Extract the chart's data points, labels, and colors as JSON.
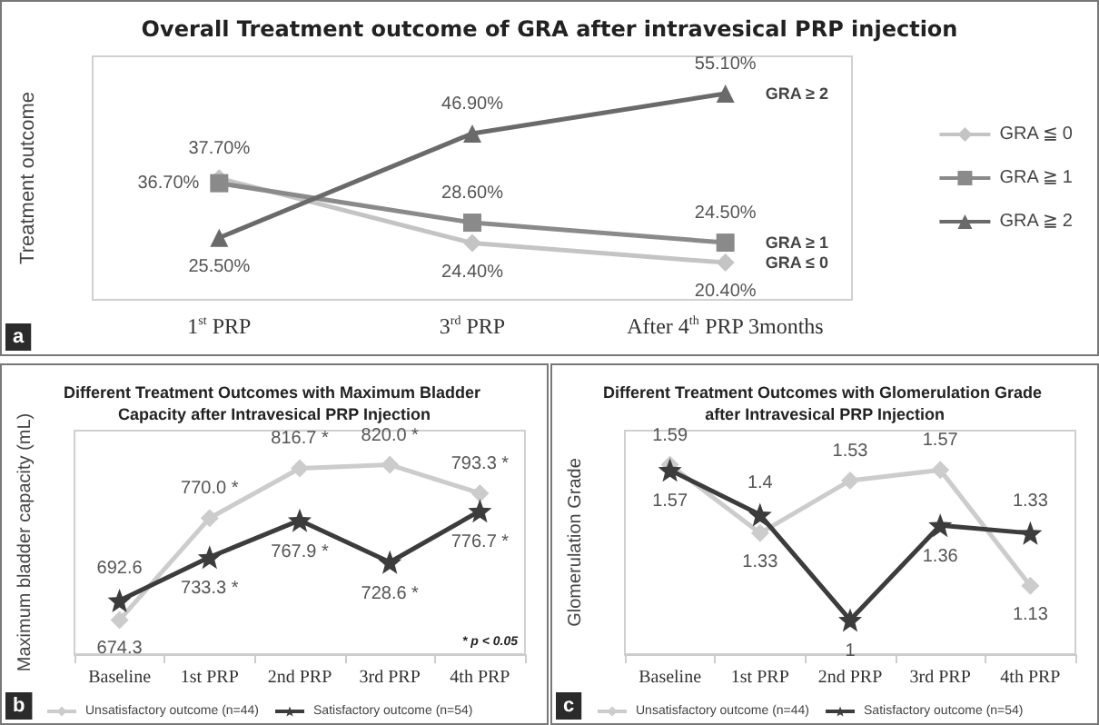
{
  "chart_data": [
    {
      "type": "line",
      "title": "Overall Treatment outcome of GRA after intravesical PRP injection",
      "ylabel": "Treatment outcome",
      "categories": [
        "1$^{st}$ PRP",
        "3$^{rd}$ PRP",
        "After 4$^{th}$ PRP 3months"
      ],
      "series": [
        {
          "name": "GRA ≦ 0",
          "color": "#c4c4c4",
          "marker": "diamond",
          "values": [
            37.7,
            24.4,
            20.4
          ],
          "value_labels": [
            "37.70%",
            "24.40%",
            "20.40%"
          ]
        },
        {
          "name": "GRA ≧ 1",
          "color": "#8a8a8a",
          "marker": "square",
          "values": [
            36.7,
            28.6,
            24.5
          ],
          "value_labels": [
            "36.70%",
            "28.60%",
            "24.50%"
          ]
        },
        {
          "name": "GRA ≧ 2",
          "color": "#6a6a6a",
          "marker": "triangle",
          "values": [
            25.5,
            46.9,
            55.1
          ],
          "value_labels": [
            "25.50%",
            "46.90%",
            "55.10%"
          ]
        }
      ],
      "annotations": [
        "a",
        {
          "text": "GRA ≥ 2",
          "x": "After 4$^{th}$ PRP 3months",
          "y": 55.1
        },
        {
          "text": "GRA ≥ 1",
          "x": "After 4$^{th}$ PRP 3months",
          "y": 24.5
        },
        {
          "text": "GRA ≤ 0",
          "x": "After 4$^{th}$ PRP 3months",
          "y": 20.4
        }
      ],
      "legend": "right",
      "grid": false
    },
    {
      "type": "line",
      "title": "Different Treatment Outcomes with Maximum Bladder Capacity after Intravesical PRP Injection",
      "ylabel": "Maximum bladder capacity (mL)",
      "categories": [
        "Baseline",
        "1st PRP",
        "2nd PRP",
        "3rd PRP",
        "4th PRP"
      ],
      "series": [
        {
          "name": "Unsatisfactory outcome (n=44)",
          "color": "#cccccc",
          "marker": "diamond",
          "values": [
            674.3,
            770.0,
            816.7,
            820.0,
            793.3
          ],
          "value_labels": [
            "674.3",
            "770.0 *",
            "816.7 *",
            "820.0 *",
            "793.3 *"
          ]
        },
        {
          "name": "Satisfactory outcome (n=54)",
          "color": "#3c3c3c",
          "marker": "star",
          "values": [
            692.6,
            733.3,
            767.9,
            728.6,
            776.7
          ],
          "value_labels": [
            "692.6",
            "733.3 *",
            "767.9 *",
            "728.6 *",
            "776.7 *"
          ]
        }
      ],
      "annotations": [
        "b",
        "* p < 0.05"
      ],
      "legend": "bottom",
      "grid": false
    },
    {
      "type": "line",
      "title": "Different Treatment Outcomes with Glomerulation Grade after Intravesical PRP Injection",
      "ylabel": "Glomerulation Grade",
      "categories": [
        "Baseline",
        "1st PRP",
        "2nd PRP",
        "3rd PRP",
        "4th PRP"
      ],
      "series": [
        {
          "name": "Unsatisfactory outcome (n=44)",
          "color": "#cccccc",
          "marker": "diamond",
          "values": [
            1.59,
            1.33,
            1.53,
            1.57,
            1.13
          ]
        },
        {
          "name": "Satisfactory outcome (n=54)",
          "color": "#3c3c3c",
          "marker": "star",
          "values": [
            1.57,
            1.4,
            1,
            1.36,
            1.33
          ]
        }
      ],
      "data_labels": true,
      "annotations": [
        "c"
      ],
      "legend": "bottom",
      "grid": false
    }
  ]
}
